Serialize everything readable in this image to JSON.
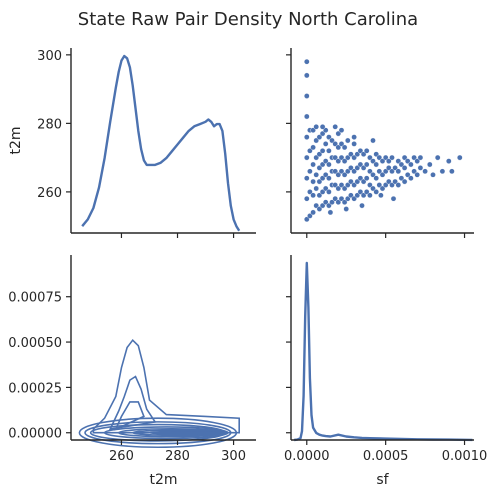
{
  "chart_data": {
    "type": "pairplot",
    "title": "State Raw Pair Density North Carolina",
    "variables": [
      "t2m",
      "sf"
    ],
    "panels": [
      {
        "id": "t2m-t2m",
        "kind": "kde-1d",
        "variable": "t2m",
        "ylabel": "t2m",
        "x_range": [
          242,
          308
        ],
        "y_ticks": [
          260,
          280,
          300
        ],
        "y_range": [
          248,
          302
        ],
        "curve": [
          [
            246,
            0.003
          ],
          [
            248,
            0.006
          ],
          [
            250,
            0.011
          ],
          [
            252,
            0.02
          ],
          [
            254,
            0.033
          ],
          [
            256,
            0.049
          ],
          [
            258,
            0.064
          ],
          [
            259,
            0.071
          ],
          [
            260,
            0.076
          ],
          [
            261,
            0.078
          ],
          [
            262,
            0.077
          ],
          [
            263,
            0.073
          ],
          [
            264,
            0.065
          ],
          [
            265,
            0.055
          ],
          [
            266,
            0.045
          ],
          [
            267,
            0.037
          ],
          [
            268,
            0.032
          ],
          [
            269,
            0.03
          ],
          [
            270,
            0.03
          ],
          [
            271,
            0.03
          ],
          [
            272,
            0.03
          ],
          [
            274,
            0.031
          ],
          [
            276,
            0.033
          ],
          [
            278,
            0.036
          ],
          [
            280,
            0.039
          ],
          [
            282,
            0.042
          ],
          [
            284,
            0.045
          ],
          [
            286,
            0.047
          ],
          [
            288,
            0.048
          ],
          [
            290,
            0.049
          ],
          [
            291,
            0.05
          ],
          [
            292,
            0.049
          ],
          [
            293,
            0.047
          ],
          [
            294,
            0.048
          ],
          [
            295,
            0.048
          ],
          [
            296,
            0.045
          ],
          [
            297,
            0.035
          ],
          [
            298,
            0.022
          ],
          [
            299,
            0.012
          ],
          [
            300,
            0.006
          ],
          [
            301,
            0.003
          ],
          [
            302,
            0.001
          ]
        ]
      },
      {
        "id": "t2m-sf",
        "kind": "scatter",
        "x_variable": "sf",
        "y_variable": "t2m",
        "x_range": [
          -0.0001,
          0.00106
        ],
        "y_range": [
          248,
          302
        ],
        "y_ticks": [
          260,
          280,
          300
        ],
        "x_ticks": [
          0.0,
          0.0005,
          0.001
        ],
        "points": [
          [
            0.0,
            252
          ],
          [
            0.0,
            258
          ],
          [
            0.0,
            264
          ],
          [
            0.0,
            270
          ],
          [
            0.0,
            276
          ],
          [
            0.0,
            282
          ],
          [
            0.0,
            288
          ],
          [
            0.0,
            294
          ],
          [
            0.0,
            298
          ],
          [
            2e-05,
            253
          ],
          [
            2e-05,
            260
          ],
          [
            2e-05,
            266
          ],
          [
            2e-05,
            272
          ],
          [
            2e-05,
            278
          ],
          [
            4e-05,
            254
          ],
          [
            4e-05,
            259
          ],
          [
            4e-05,
            263
          ],
          [
            4e-05,
            268
          ],
          [
            4e-05,
            273
          ],
          [
            4e-05,
            278
          ],
          [
            6e-05,
            256
          ],
          [
            6e-05,
            261
          ],
          [
            6e-05,
            265
          ],
          [
            6e-05,
            270
          ],
          [
            6e-05,
            275
          ],
          [
            6e-05,
            279
          ],
          [
            8e-05,
            255
          ],
          [
            8e-05,
            259
          ],
          [
            8e-05,
            263
          ],
          [
            8e-05,
            267
          ],
          [
            8e-05,
            271
          ],
          [
            8e-05,
            276
          ],
          [
            0.0001,
            256
          ],
          [
            0.0001,
            260
          ],
          [
            0.0001,
            264
          ],
          [
            0.0001,
            268
          ],
          [
            0.0001,
            272
          ],
          [
            0.0001,
            277
          ],
          [
            0.00012,
            257
          ],
          [
            0.00012,
            261
          ],
          [
            0.00012,
            265
          ],
          [
            0.00012,
            269
          ],
          [
            0.00012,
            274
          ],
          [
            0.00012,
            278
          ],
          [
            0.00014,
            256
          ],
          [
            0.00014,
            260
          ],
          [
            0.00014,
            264
          ],
          [
            0.00014,
            268
          ],
          [
            0.00014,
            272
          ],
          [
            0.00014,
            276
          ],
          [
            0.00016,
            257
          ],
          [
            0.00016,
            262
          ],
          [
            0.00016,
            266
          ],
          [
            0.00016,
            270
          ],
          [
            0.00016,
            275
          ],
          [
            0.00018,
            258
          ],
          [
            0.00018,
            262
          ],
          [
            0.00018,
            266
          ],
          [
            0.00018,
            270
          ],
          [
            0.00018,
            274
          ],
          [
            0.0002,
            257
          ],
          [
            0.0002,
            261
          ],
          [
            0.0002,
            265
          ],
          [
            0.0002,
            269
          ],
          [
            0.0002,
            273
          ],
          [
            0.0002,
            277
          ],
          [
            0.00022,
            258
          ],
          [
            0.00022,
            262
          ],
          [
            0.00022,
            266
          ],
          [
            0.00022,
            270
          ],
          [
            0.00022,
            274
          ],
          [
            0.00024,
            257
          ],
          [
            0.00024,
            261
          ],
          [
            0.00024,
            265
          ],
          [
            0.00024,
            269
          ],
          [
            0.00024,
            273
          ],
          [
            0.00026,
            258
          ],
          [
            0.00026,
            262
          ],
          [
            0.00026,
            266
          ],
          [
            0.00026,
            270
          ],
          [
            0.00026,
            275
          ],
          [
            0.00028,
            259
          ],
          [
            0.00028,
            263
          ],
          [
            0.00028,
            267
          ],
          [
            0.00028,
            271
          ],
          [
            0.0003,
            258
          ],
          [
            0.0003,
            262
          ],
          [
            0.0003,
            266
          ],
          [
            0.0003,
            270
          ],
          [
            0.0003,
            274
          ],
          [
            0.00032,
            259
          ],
          [
            0.00032,
            263
          ],
          [
            0.00032,
            267
          ],
          [
            0.00032,
            271
          ],
          [
            0.00034,
            260
          ],
          [
            0.00034,
            264
          ],
          [
            0.00034,
            268
          ],
          [
            0.00034,
            272
          ],
          [
            0.00036,
            259
          ],
          [
            0.00036,
            263
          ],
          [
            0.00036,
            267
          ],
          [
            0.00036,
            271
          ],
          [
            0.00038,
            260
          ],
          [
            0.00038,
            264
          ],
          [
            0.00038,
            268
          ],
          [
            0.00038,
            272
          ],
          [
            0.0004,
            259
          ],
          [
            0.0004,
            262
          ],
          [
            0.0004,
            266
          ],
          [
            0.0004,
            270
          ],
          [
            0.00042,
            261
          ],
          [
            0.00042,
            265
          ],
          [
            0.00042,
            269
          ],
          [
            0.00044,
            260
          ],
          [
            0.00044,
            264
          ],
          [
            0.00044,
            268
          ],
          [
            0.00044,
            271
          ],
          [
            0.00046,
            262
          ],
          [
            0.00046,
            266
          ],
          [
            0.00046,
            270
          ],
          [
            0.00048,
            261
          ],
          [
            0.00048,
            265
          ],
          [
            0.00048,
            269
          ],
          [
            0.0005,
            262
          ],
          [
            0.0005,
            266
          ],
          [
            0.0005,
            270
          ],
          [
            0.00052,
            263
          ],
          [
            0.00052,
            267
          ],
          [
            0.00052,
            269
          ],
          [
            0.00054,
            262
          ],
          [
            0.00054,
            266
          ],
          [
            0.00054,
            270
          ],
          [
            0.00056,
            263
          ],
          [
            0.00056,
            267
          ],
          [
            0.00058,
            262
          ],
          [
            0.00058,
            266
          ],
          [
            0.00058,
            269
          ],
          [
            0.0006,
            264
          ],
          [
            0.0006,
            268
          ],
          [
            0.00062,
            263
          ],
          [
            0.00062,
            267
          ],
          [
            0.00062,
            270
          ],
          [
            0.00064,
            265
          ],
          [
            0.00064,
            269
          ],
          [
            0.00066,
            264
          ],
          [
            0.00066,
            268
          ],
          [
            0.00068,
            266
          ],
          [
            0.00068,
            270
          ],
          [
            0.0007,
            265
          ],
          [
            0.0007,
            269
          ],
          [
            0.00072,
            267
          ],
          [
            0.00072,
            270
          ],
          [
            0.00075,
            266
          ],
          [
            0.00078,
            268
          ],
          [
            0.0008,
            265
          ],
          [
            0.00083,
            270
          ],
          [
            0.00086,
            266
          ],
          [
            0.0009,
            269
          ],
          [
            0.00092,
            266
          ],
          [
            0.00097,
            270
          ],
          [
            0.00047,
            259
          ],
          [
            0.00055,
            258
          ],
          [
            0.00035,
            256
          ],
          [
            0.00025,
            255
          ],
          [
            0.00015,
            254
          ],
          [
            0.00042,
            275
          ],
          [
            0.0003,
            276
          ],
          [
            0.00022,
            278
          ],
          [
            0.0001,
            279
          ],
          [
            0.00018,
            279
          ]
        ]
      },
      {
        "id": "sf-t2m",
        "kind": "kde-2d",
        "x_variable": "t2m",
        "y_variable": "sf",
        "xlabel": "t2m",
        "x_range": [
          242,
          308
        ],
        "x_ticks": [
          260,
          280,
          300
        ],
        "y_range": [
          -4e-05,
          0.00098
        ],
        "y_ticks": [
          0.0,
          0.00025,
          0.0005,
          0.00075
        ],
        "y_tick_labels": [
          "0.00000",
          "0.00025",
          "0.00050",
          "0.00075"
        ],
        "contours": [
          {
            "cx": 273,
            "cy": 0.0,
            "rx": 28,
            "ry": 8e-05
          },
          {
            "cx": 273,
            "cy": 0.0,
            "rx": 26,
            "ry": 6e-05
          },
          {
            "cx": 273,
            "cy": 0.0,
            "rx": 24,
            "ry": 4.5e-05
          },
          {
            "cx": 276,
            "cy": 0.0,
            "rx": 22,
            "ry": 3.2e-05
          },
          {
            "cx": 278,
            "cy": 0.0,
            "rx": 19,
            "ry": 2.2e-05
          },
          {
            "cx": 280,
            "cy": 0.0,
            "rx": 16,
            "ry": 1.4e-05
          },
          {
            "cx": 282,
            "cy": 0.0,
            "rx": 12,
            "ry": 8e-06
          },
          {
            "cx": 285,
            "cy": 0.0,
            "rx": 8,
            "ry": 4e-06
          }
        ],
        "peak_contours": [
          [
            [
              250,
              2e-05
            ],
            [
              254,
              8e-05
            ],
            [
              258,
              0.0002
            ],
            [
              260,
              0.00036
            ],
            [
              262,
              0.00047
            ],
            [
              264,
              0.00051
            ],
            [
              266,
              0.00048
            ],
            [
              268,
              0.00036
            ],
            [
              270,
              0.00018
            ],
            [
              276,
              0.0001
            ],
            [
              290,
              9e-05
            ],
            [
              302,
              8e-05
            ],
            [
              302,
              0.0
            ],
            [
              250,
              0.0
            ]
          ],
          [
            [
              256,
              2e-05
            ],
            [
              259,
              0.00012
            ],
            [
              261,
              0.0002
            ],
            [
              263,
              0.00029
            ],
            [
              265,
              0.00031
            ],
            [
              267,
              0.00024
            ],
            [
              269,
              0.00013
            ],
            [
              272,
              6e-05
            ],
            [
              256,
              2e-05
            ]
          ],
          [
            [
              258,
              2e-05
            ],
            [
              260,
              9e-05
            ],
            [
              263,
              0.00017
            ],
            [
              266,
              0.00017
            ],
            [
              268,
              9e-05
            ],
            [
              258,
              2e-05
            ]
          ]
        ]
      },
      {
        "id": "sf-sf",
        "kind": "kde-1d",
        "variable": "sf",
        "xlabel": "sf",
        "x_range": [
          -0.0001,
          0.00106
        ],
        "x_ticks": [
          0.0,
          0.0005,
          0.001
        ],
        "x_tick_labels": [
          "0.0000",
          "0.0005",
          "0.0010"
        ],
        "curve": [
          [
            -8e-05,
            0.0
          ],
          [
            -6e-05,
            0.002
          ],
          [
            -4e-05,
            0.01
          ],
          [
            -3e-05,
            0.05
          ],
          [
            -2e-05,
            0.25
          ],
          [
            -1e-05,
            0.7
          ],
          [
            0.0,
            1.0
          ],
          [
            1e-05,
            0.75
          ],
          [
            2e-05,
            0.35
          ],
          [
            3e-05,
            0.14
          ],
          [
            4e-05,
            0.07
          ],
          [
            6e-05,
            0.04
          ],
          [
            8e-05,
            0.03
          ],
          [
            0.0001,
            0.025
          ],
          [
            0.00012,
            0.022
          ],
          [
            0.00015,
            0.02
          ],
          [
            0.0002,
            0.03
          ],
          [
            0.00025,
            0.02
          ],
          [
            0.0003,
            0.015
          ],
          [
            0.00035,
            0.012
          ],
          [
            0.0004,
            0.01
          ],
          [
            0.0005,
            0.008
          ],
          [
            0.0006,
            0.006
          ],
          [
            0.0007,
            0.004
          ],
          [
            0.0008,
            0.003
          ],
          [
            0.0009,
            0.002
          ],
          [
            0.001,
            0.001
          ],
          [
            0.00105,
            0.0005
          ]
        ]
      }
    ]
  }
}
